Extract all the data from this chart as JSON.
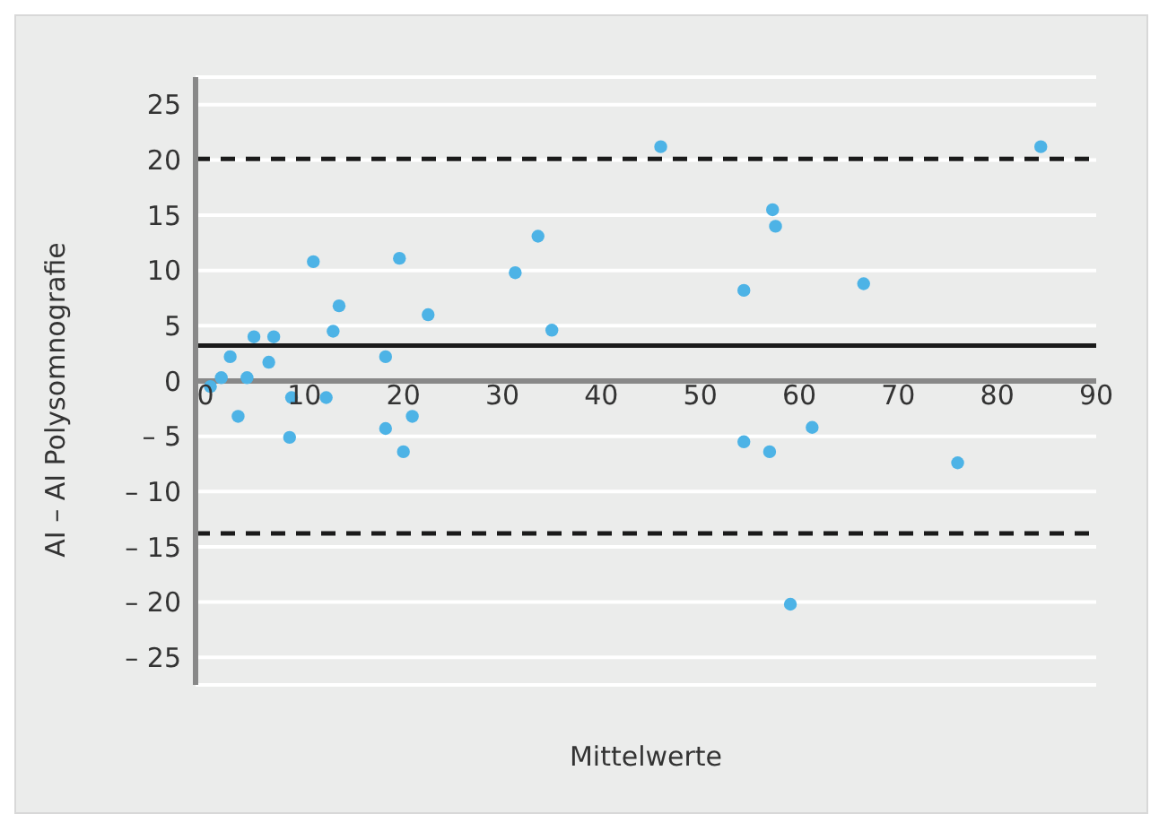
{
  "chart_data": {
    "type": "scatter",
    "xlabel": "Mittelwerte",
    "ylabel": "AI – AI Polysomnografie",
    "x": [
      0.5,
      1.6,
      2.5,
      3.3,
      4.2,
      4.9,
      6.4,
      6.9,
      8.7,
      8.5,
      10.9,
      12.2,
      12.9,
      13.5,
      18.2,
      18.2,
      19.6,
      20,
      20.9,
      22.5,
      31.3,
      33.6,
      35,
      46,
      54.4,
      54.4,
      57,
      57.3,
      57.6,
      59.1,
      61.3,
      66.5,
      76,
      84.4
    ],
    "series": [
      {
        "color": "#4db3e6",
        "values": [
          -0.5,
          0.3,
          2.2,
          -3.2,
          0.3,
          4,
          1.7,
          4,
          -1.5,
          -5.1,
          10.8,
          -1.5,
          4.5,
          6.8,
          2.2,
          -4.3,
          11.1,
          -6.4,
          -3.2,
          6,
          9.8,
          13.1,
          4.6,
          21.2,
          8.2,
          -5.5,
          -6.4,
          15.5,
          14,
          -20.2,
          -4.2,
          8.8,
          -7.4,
          21.2
        ]
      }
    ],
    "xlim": [
      -1,
      90
    ],
    "xticks": [
      0,
      10,
      20,
      30,
      40,
      50,
      60,
      70,
      80,
      90
    ],
    "ylim": [
      -27.5,
      27.5
    ],
    "yticks": [
      {
        "value": -25,
        "label": "– 25"
      },
      {
        "value": -20,
        "label": "– 20"
      },
      {
        "value": -15,
        "label": "– 15"
      },
      {
        "value": -10,
        "label": "– 10"
      },
      {
        "value": -5,
        "label": "– 5"
      },
      0,
      5,
      10,
      15,
      20,
      25
    ],
    "ref_lines": [
      {
        "axis": "y",
        "value": 3.2,
        "color": "#1a1a1a",
        "line_style": "solid"
      },
      {
        "axis": "y",
        "value": 20.1,
        "color": "#1a1a1a",
        "line_style": "dashed"
      },
      {
        "axis": "y",
        "value": -13.8,
        "color": "#1a1a1a",
        "line_style": "dashed"
      }
    ],
    "grid": "y",
    "marker": "circle"
  }
}
